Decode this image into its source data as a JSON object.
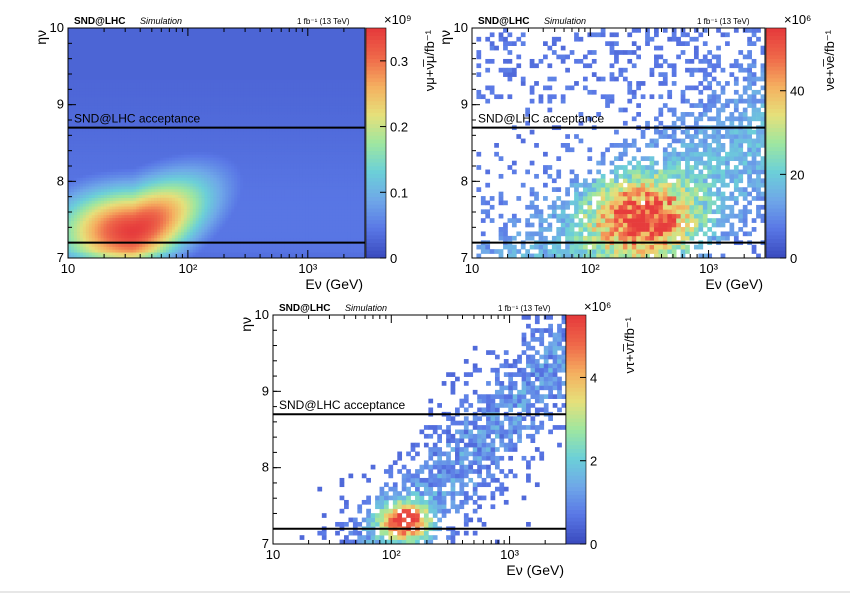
{
  "colors": {
    "background": "#ffffff",
    "acceptance_line": "#000000",
    "colormap": [
      "#3b4cc0",
      "#5a78e6",
      "#6fa8e8",
      "#6cd0d8",
      "#9ee6a0",
      "#e6e07a",
      "#f5b060",
      "#ef6a4a",
      "#e63c3c"
    ]
  },
  "icons": [],
  "chart_data": [
    {
      "type": "heatmap",
      "title": "SND@LHC Simulation",
      "brand": "SND@LHC",
      "brand_sub": "Simulation",
      "luminosity_label": "1 fb⁻¹ (13 TeV)",
      "xlabel": "Eν (GeV)",
      "ylabel": "ην",
      "zlabel": "νμ+ν̅μ/fb⁻¹",
      "x_scale": "log",
      "xlim": [
        10,
        3000
      ],
      "ylim": [
        7,
        10
      ],
      "zlim": [
        0,
        0.35
      ],
      "z_multiplier": "×10⁹",
      "x_ticks": [
        "10",
        "10²",
        "10³"
      ],
      "y_ticks": [
        "7",
        "8",
        "9",
        "10"
      ],
      "z_ticks": [
        "0",
        "0.1",
        "0.2",
        "0.3"
      ],
      "z_tick_values": [
        0,
        0.1,
        0.2,
        0.3
      ],
      "acceptance_label": "SND@LHC acceptance",
      "acceptance_eta": [
        7.2,
        8.7
      ],
      "distribution": {
        "peak_energy_gev": 35,
        "peak_eta": 7.25,
        "peak_value": 0.32,
        "texture": "smooth"
      }
    },
    {
      "type": "heatmap",
      "title": "SND@LHC Simulation",
      "brand": "SND@LHC",
      "brand_sub": "Simulation",
      "luminosity_label": "1 fb⁻¹ (13 TeV)",
      "xlabel": "Eν (GeV)",
      "ylabel": "ην",
      "zlabel": "νe+ν̅e/fb⁻¹",
      "x_scale": "log",
      "xlim": [
        10,
        3000
      ],
      "ylim": [
        7,
        10
      ],
      "zlim": [
        0,
        55
      ],
      "z_multiplier": "×10⁶",
      "x_ticks": [
        "10",
        "10²",
        "10³"
      ],
      "y_ticks": [
        "7",
        "8",
        "9",
        "10"
      ],
      "z_ticks": [
        "0",
        "20",
        "40"
      ],
      "z_tick_values": [
        0,
        20,
        40
      ],
      "acceptance_label": "SND@LHC acceptance",
      "acceptance_eta": [
        7.2,
        8.7
      ],
      "distribution": {
        "peak_energy_gev": 280,
        "peak_eta": 7.35,
        "peak_value": 52,
        "texture": "sparse"
      }
    },
    {
      "type": "heatmap",
      "title": "SND@LHC Simulation",
      "brand": "SND@LHC",
      "brand_sub": "Simulation",
      "luminosity_label": "1 fb⁻¹ (13 TeV)",
      "xlabel": "Eν (GeV)",
      "ylabel": "ην",
      "zlabel": "ντ+ν̅τ/fb⁻¹",
      "x_scale": "log",
      "xlim": [
        10,
        3000
      ],
      "ylim": [
        7,
        10
      ],
      "zlim": [
        0,
        5.5
      ],
      "z_multiplier": "×10⁶",
      "x_ticks": [
        "10",
        "10²",
        "10³"
      ],
      "y_ticks": [
        "7",
        "8",
        "9",
        "10"
      ],
      "z_ticks": [
        "0",
        "2",
        "4"
      ],
      "z_tick_values": [
        0,
        2,
        4
      ],
      "acceptance_label": "SND@LHC acceptance",
      "acceptance_eta": [
        7.2,
        8.7
      ],
      "distribution": {
        "peak_energy_gev": 130,
        "peak_eta": 7.3,
        "peak_value": 5.0,
        "texture": "very_sparse"
      }
    }
  ]
}
